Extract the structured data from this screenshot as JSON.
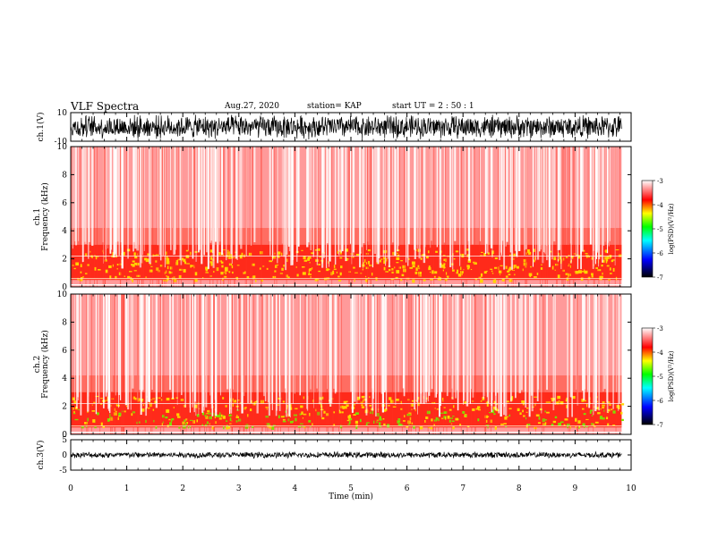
{
  "header": {
    "title": "VLF Spectra",
    "date": "Aug.27, 2020",
    "station": "station= KAP",
    "start": "start  UT  =   2  : 50 : 1"
  },
  "colors": {
    "colormap": [
      "#000000",
      "#0000ff",
      "#00ffff",
      "#00ff00",
      "#ffff00",
      "#ff0000",
      "#ffffff"
    ],
    "trace": "#000000"
  },
  "chart_data": [
    {
      "type": "line",
      "panel": "ch1-waveform",
      "ylabel": "ch.1(V)",
      "ylim": [
        -10,
        10
      ],
      "yticks": [
        "10",
        "-10"
      ],
      "description_values": {
        "amplitude_range": [
          -10,
          10
        ]
      }
    },
    {
      "type": "heatmap",
      "panel": "ch1-spectrogram",
      "ylabel": "ch.1\nFrequency (kHz)",
      "ylim": [
        0,
        10
      ],
      "yticks": [
        "0",
        "2",
        "4",
        "6",
        "8",
        "10"
      ],
      "xlim": [
        0,
        10
      ],
      "intense_band_khz": [
        0.5,
        3.0
      ],
      "colorbar": {
        "label": "log(PSD)(V²/Hz)",
        "range": [
          -7,
          -3
        ],
        "ticks": [
          "-3",
          "-4",
          "-5",
          "-6",
          "-7"
        ]
      }
    },
    {
      "type": "heatmap",
      "panel": "ch2-spectrogram",
      "ylabel": "ch.2\nFrequency (kHz)",
      "ylim": [
        0,
        10
      ],
      "yticks": [
        "0",
        "2",
        "4",
        "6",
        "8",
        "10"
      ],
      "xlim": [
        0,
        10
      ],
      "intense_band_khz": [
        0.5,
        3.0
      ],
      "colorbar": {
        "label": "log(PSD)(V²/Hz)",
        "range": [
          -7,
          -3
        ],
        "ticks": [
          "-3",
          "-4",
          "-5",
          "-6",
          "-7"
        ]
      }
    },
    {
      "type": "line",
      "panel": "ch3-waveform",
      "ylabel": "ch.3(V)",
      "ylim": [
        -5,
        5
      ],
      "yticks": [
        "5",
        "0",
        "-5"
      ],
      "description_values": {
        "amplitude_range": [
          -1,
          1
        ]
      }
    }
  ],
  "xaxis": {
    "label": "Time (min)",
    "ticks": [
      "0",
      "1",
      "2",
      "3",
      "4",
      "5",
      "6",
      "7",
      "8",
      "9",
      "10"
    ],
    "range": [
      0,
      10
    ],
    "data_end": 9.83
  }
}
